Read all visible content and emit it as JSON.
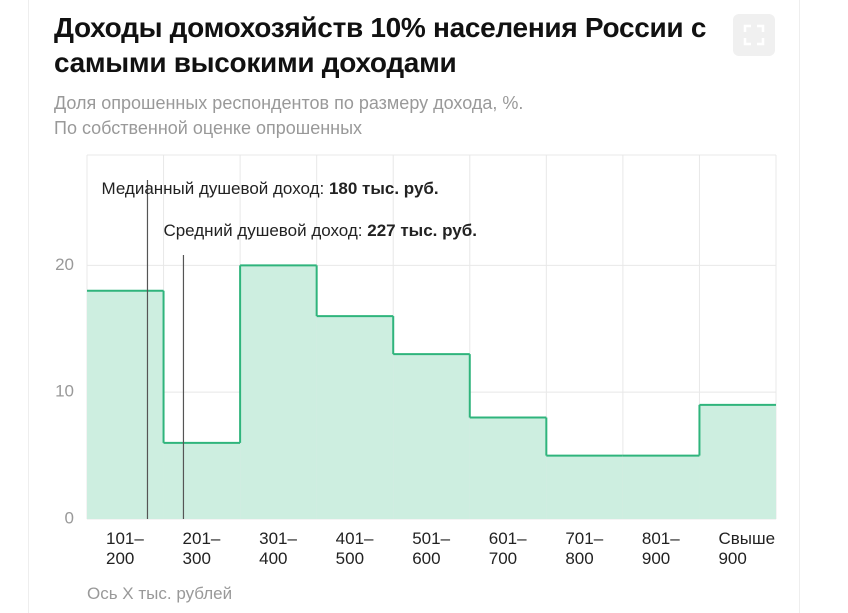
{
  "chart_data": {
    "type": "step",
    "title": "Доходы домохозяйств 10% населения России с самыми высокими доходами",
    "subtitle": [
      "Доля опрошенных респондентов по размеру дохода, %.",
      "По собственной оценке опрошенных"
    ],
    "x_label": "Ось X тыс. рублей",
    "categories": [
      "101–200",
      "201–300",
      "301–400",
      "401–500",
      "501–600",
      "601–700",
      "701–800",
      "801–900",
      "Свыше 900"
    ],
    "values": [
      18,
      6,
      20,
      16,
      13,
      8,
      5,
      5,
      9
    ],
    "color": "#cdeee0",
    "line_color": "#2fb47c",
    "xlim": [
      101,
      1001
    ],
    "ylim": [
      0,
      28.7
    ],
    "yticks": [
      0,
      10,
      20
    ],
    "grid": true,
    "annotations": [
      {
        "label": "Медианный душевой доход: ",
        "value": 180,
        "value_label": "180 тыс. руб."
      },
      {
        "label": "Средний душевой доход: ",
        "value": 227,
        "value_label": "227 тыс. руб."
      }
    ]
  }
}
